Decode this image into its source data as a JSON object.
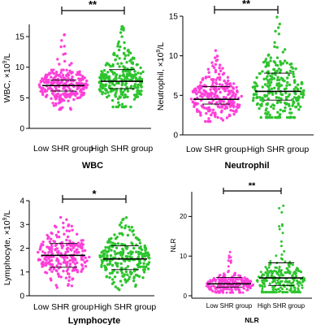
{
  "colors": {
    "low": "#ff3fd9",
    "high": "#2ec42e",
    "axis": "#000000"
  },
  "categories": [
    "Low SHR group",
    "High SHR group"
  ],
  "chart_data": [
    {
      "type": "scatter",
      "panel": "WBC",
      "title": "WBC",
      "ylabel_main": "WBC, ×10",
      "ylabel_sup": "9",
      "ylabel_tail": "/L",
      "ylim": [
        0,
        17
      ],
      "yticks": [
        0,
        5,
        10,
        15
      ],
      "significance": "**",
      "categories": [
        "Low SHR group",
        "High SHR group"
      ],
      "series": [
        {
          "category": "Low SHR group",
          "mean": 7.0,
          "sd_low": 6.1,
          "sd_high": 7.9,
          "min": 3.1,
          "max": 15.7,
          "median": 7.0,
          "spread": 1.6,
          "n": 260,
          "seed": 11
        },
        {
          "category": "High SHR group",
          "mean": 7.7,
          "sd_low": 6.5,
          "sd_high": 9.6,
          "min": 3.5,
          "max": 16.8,
          "median": 7.7,
          "spread": 2.0,
          "n": 260,
          "seed": 23
        }
      ]
    },
    {
      "type": "scatter",
      "panel": "Neutrophil",
      "title": "Neutrophil",
      "ylabel_main": "Neutrophil, ×10",
      "ylabel_sup": "9",
      "ylabel_tail": "/L",
      "ylim": [
        0,
        15
      ],
      "yticks": [
        0,
        5,
        10,
        15
      ],
      "significance": "**",
      "categories": [
        "Low SHR group",
        "High SHR group"
      ],
      "series": [
        {
          "category": "Low SHR group",
          "mean": 4.5,
          "sd_low": 3.9,
          "sd_high": 6.1,
          "min": 1.7,
          "max": 10.8,
          "median": 4.6,
          "spread": 1.5,
          "n": 260,
          "seed": 37
        },
        {
          "category": "High SHR group",
          "mean": 5.5,
          "sd_low": 4.4,
          "sd_high": 7.8,
          "min": 2.2,
          "max": 14.9,
          "median": 5.4,
          "spread": 2.2,
          "n": 260,
          "seed": 41
        }
      ]
    },
    {
      "type": "scatter",
      "panel": "Lymphocyte",
      "title": "Lymphocyte",
      "ylabel_main": "Lymphocyte, ×10",
      "ylabel_sup": "9",
      "ylabel_tail": "/L",
      "ylim": [
        0,
        4
      ],
      "yticks": [
        0,
        1,
        2,
        3,
        4
      ],
      "significance": "*",
      "categories": [
        "Low SHR group",
        "High SHR group"
      ],
      "series": [
        {
          "category": "Low SHR group",
          "mean": 1.7,
          "sd_low": 1.2,
          "sd_high": 2.2,
          "min": 0.3,
          "max": 3.3,
          "median": 1.7,
          "spread": 0.55,
          "n": 240,
          "seed": 53
        },
        {
          "category": "High SHR group",
          "mean": 1.55,
          "sd_low": 1.1,
          "sd_high": 2.1,
          "min": 0.2,
          "max": 3.3,
          "median": 1.5,
          "spread": 0.55,
          "n": 240,
          "seed": 67
        }
      ]
    },
    {
      "type": "scatter",
      "panel": "NLR",
      "title": "NLR",
      "ylabel_main": "NLR",
      "ylabel_sup": "",
      "ylabel_tail": "",
      "ylim": [
        0,
        25
      ],
      "yticks": [
        0,
        10,
        20
      ],
      "significance": "**",
      "categories": [
        "Low SHR group",
        "High SHR group"
      ],
      "series": [
        {
          "category": "Low SHR group",
          "mean": 3.0,
          "sd_low": 2.2,
          "sd_high": 4.6,
          "min": 0.8,
          "max": 11.0,
          "median": 2.8,
          "spread": 1.2,
          "n": 260,
          "seed": 79
        },
        {
          "category": "High SHR group",
          "mean": 4.5,
          "sd_low": 2.6,
          "sd_high": 8.3,
          "min": 0.9,
          "max": 24.0,
          "median": 3.5,
          "spread": 2.6,
          "n": 260,
          "seed": 83
        }
      ]
    }
  ]
}
